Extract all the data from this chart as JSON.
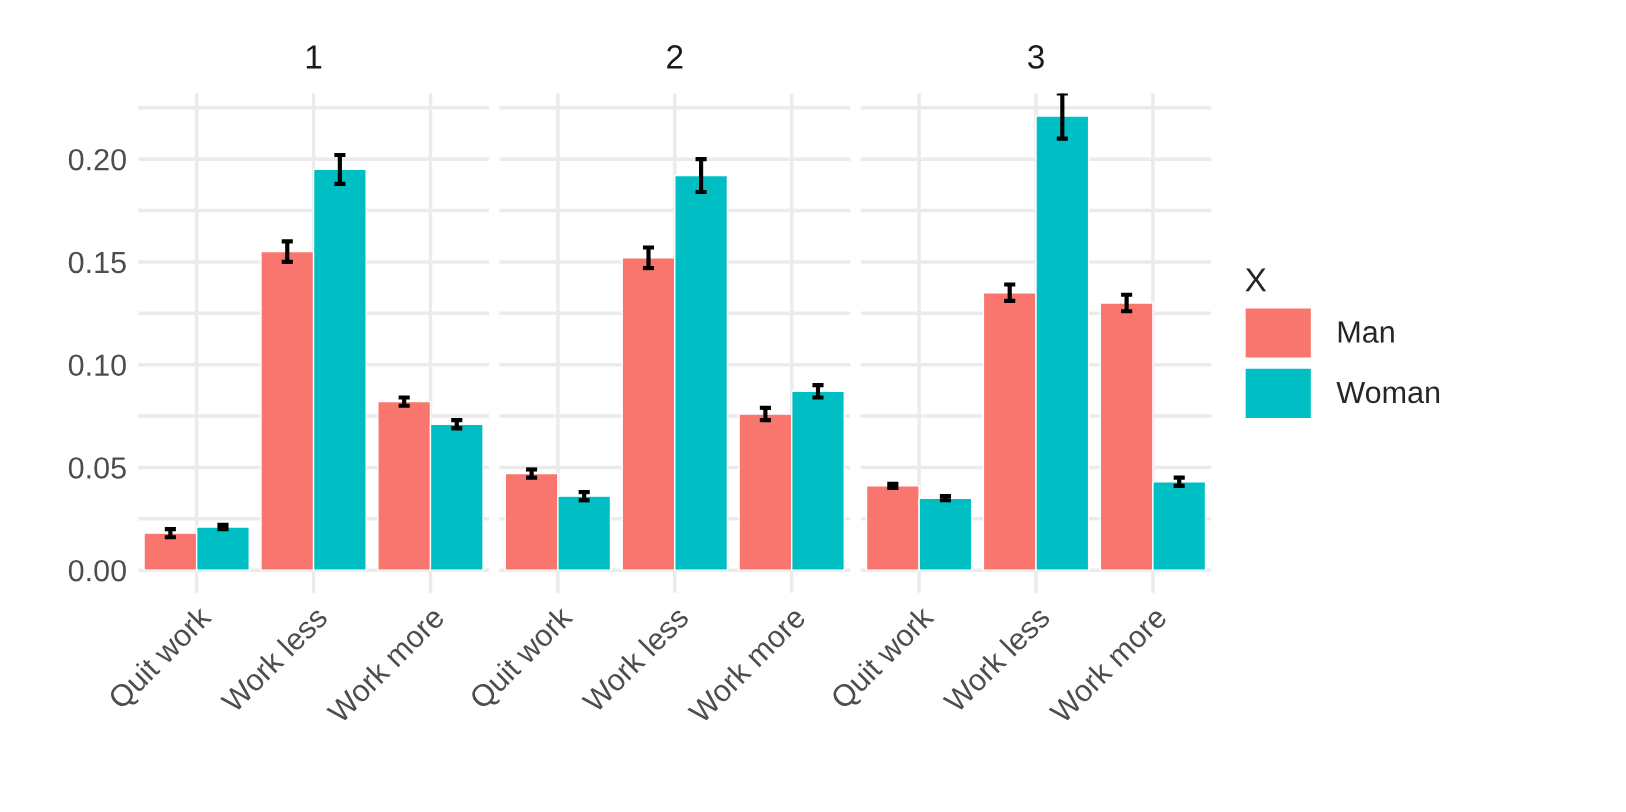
{
  "chart_data": [
    {
      "type": "bar",
      "title": "1",
      "categories": [
        "Quit work",
        "Work less",
        "Work more"
      ],
      "series": [
        {
          "color": "#f8766d",
          "values": [
            0.018,
            0.155,
            0.082
          ],
          "errors": [
            0.002,
            0.005,
            0.002
          ]
        },
        {
          "color": "#00bfc4",
          "values": [
            0.021,
            0.195,
            0.071
          ],
          "errors": [
            0.001,
            0.007,
            0.002
          ]
        }
      ],
      "ylim": [
        -0.011,
        0.232
      ],
      "yticks": [
        {
          "value": 0,
          "label": "0.00"
        },
        {
          "value": 0.025,
          "label": null
        },
        {
          "value": 0.05,
          "label": "0.05"
        },
        {
          "value": 0.075,
          "label": null
        },
        {
          "value": 0.1,
          "label": "0.10"
        },
        {
          "value": 0.125,
          "label": null
        },
        {
          "value": 0.15,
          "label": "0.15"
        },
        {
          "value": 0.175,
          "label": null
        },
        {
          "value": 0.2,
          "label": "0.20"
        },
        {
          "value": 0.225,
          "label": null
        }
      ],
      "grid": true
    },
    {
      "type": "bar",
      "title": "2",
      "categories": [
        "Quit work",
        "Work less",
        "Work more"
      ],
      "series": [
        {
          "color": "#f8766d",
          "values": [
            0.047,
            0.152,
            0.076
          ],
          "errors": [
            0.002,
            0.005,
            0.003
          ]
        },
        {
          "color": "#00bfc4",
          "values": [
            0.036,
            0.192,
            0.087
          ],
          "errors": [
            0.002,
            0.008,
            0.003
          ]
        }
      ],
      "ylim": [
        -0.011,
        0.232
      ],
      "yticks": [
        {
          "value": 0,
          "label": null
        },
        {
          "value": 0.025,
          "label": null
        },
        {
          "value": 0.05,
          "label": null
        },
        {
          "value": 0.075,
          "label": null
        },
        {
          "value": 0.1,
          "label": null
        },
        {
          "value": 0.125,
          "label": null
        },
        {
          "value": 0.15,
          "label": null
        },
        {
          "value": 0.175,
          "label": null
        },
        {
          "value": 0.2,
          "label": null
        },
        {
          "value": 0.225,
          "label": null
        }
      ],
      "grid": true,
      "tick_labels": "x"
    },
    {
      "type": "bar",
      "title": "3",
      "categories": [
        "Quit work",
        "Work less",
        "Work more"
      ],
      "series": [
        {
          "name": "Man",
          "color": "#f8766d",
          "values": [
            0.041,
            0.135,
            0.13
          ],
          "errors": [
            0.001,
            0.004,
            0.004
          ]
        },
        {
          "name": "Woman",
          "color": "#00bfc4",
          "values": [
            0.035,
            0.221,
            0.043
          ],
          "errors": [
            0.001,
            0.011,
            0.002
          ]
        }
      ],
      "ylim": [
        -0.011,
        0.232
      ],
      "yticks": [
        {
          "value": 0,
          "label": null
        },
        {
          "value": 0.025,
          "label": null
        },
        {
          "value": 0.05,
          "label": null
        },
        {
          "value": 0.075,
          "label": null
        },
        {
          "value": 0.1,
          "label": null
        },
        {
          "value": 0.125,
          "label": null
        },
        {
          "value": 0.15,
          "label": null
        },
        {
          "value": 0.175,
          "label": null
        },
        {
          "value": 0.2,
          "label": null
        },
        {
          "value": 0.225,
          "label": null
        }
      ],
      "grid": true,
      "legend": "right",
      "legend_title": "X",
      "tick_labels": "x"
    }
  ]
}
